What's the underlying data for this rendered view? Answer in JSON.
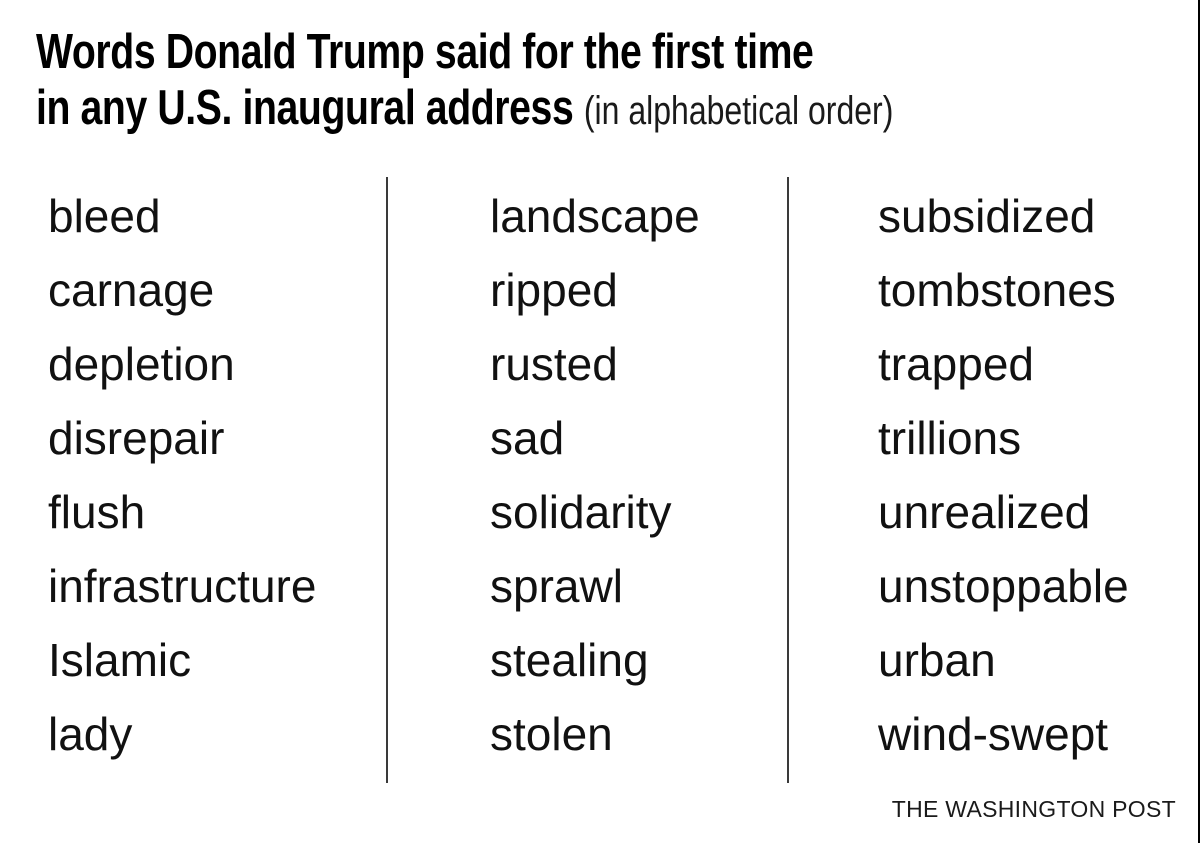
{
  "title": {
    "line1": "Words Donald Trump said for the first time",
    "line2": "in any U.S. inaugural address",
    "line2_note": "(in alphabetical order)"
  },
  "word_columns": [
    {
      "words": [
        "bleed",
        "carnage",
        "depletion",
        "disrepair",
        "flush",
        "infrastructure",
        "Islamic",
        "lady"
      ]
    },
    {
      "words": [
        "landscape",
        "ripped",
        "rusted",
        "sad",
        "solidarity",
        "sprawl",
        "stealing",
        "stolen"
      ]
    },
    {
      "words": [
        "subsidized",
        "tombstones",
        "trapped",
        "trillions",
        "unrealized",
        "unstoppable",
        "urban",
        "wind-swept"
      ]
    }
  ],
  "footer": {
    "credit": "THE WASHINGTON POST"
  },
  "colors": {
    "background": "#ffffff",
    "text": "#111111",
    "title": "#000000",
    "divider": "#3a3a3a",
    "right_border": "#000000"
  },
  "chart_data": {
    "type": "table",
    "title": "Words Donald Trump said for the first time in any U.S. inaugural address (in alphabetical order)",
    "columns": [
      [
        "bleed",
        "carnage",
        "depletion",
        "disrepair",
        "flush",
        "infrastructure",
        "Islamic",
        "lady"
      ],
      [
        "landscape",
        "ripped",
        "rusted",
        "sad",
        "solidarity",
        "sprawl",
        "stealing",
        "stolen"
      ],
      [
        "subsidized",
        "tombstones",
        "trapped",
        "trillions",
        "unrealized",
        "unstoppable",
        "urban",
        "wind-swept"
      ]
    ],
    "rows": 8,
    "layout": {
      "columns": 3,
      "dividers": true,
      "ordering": "alphabetical, column-major",
      "legend": "none",
      "grid": "off"
    },
    "source_credit": "THE WASHINGTON POST"
  }
}
